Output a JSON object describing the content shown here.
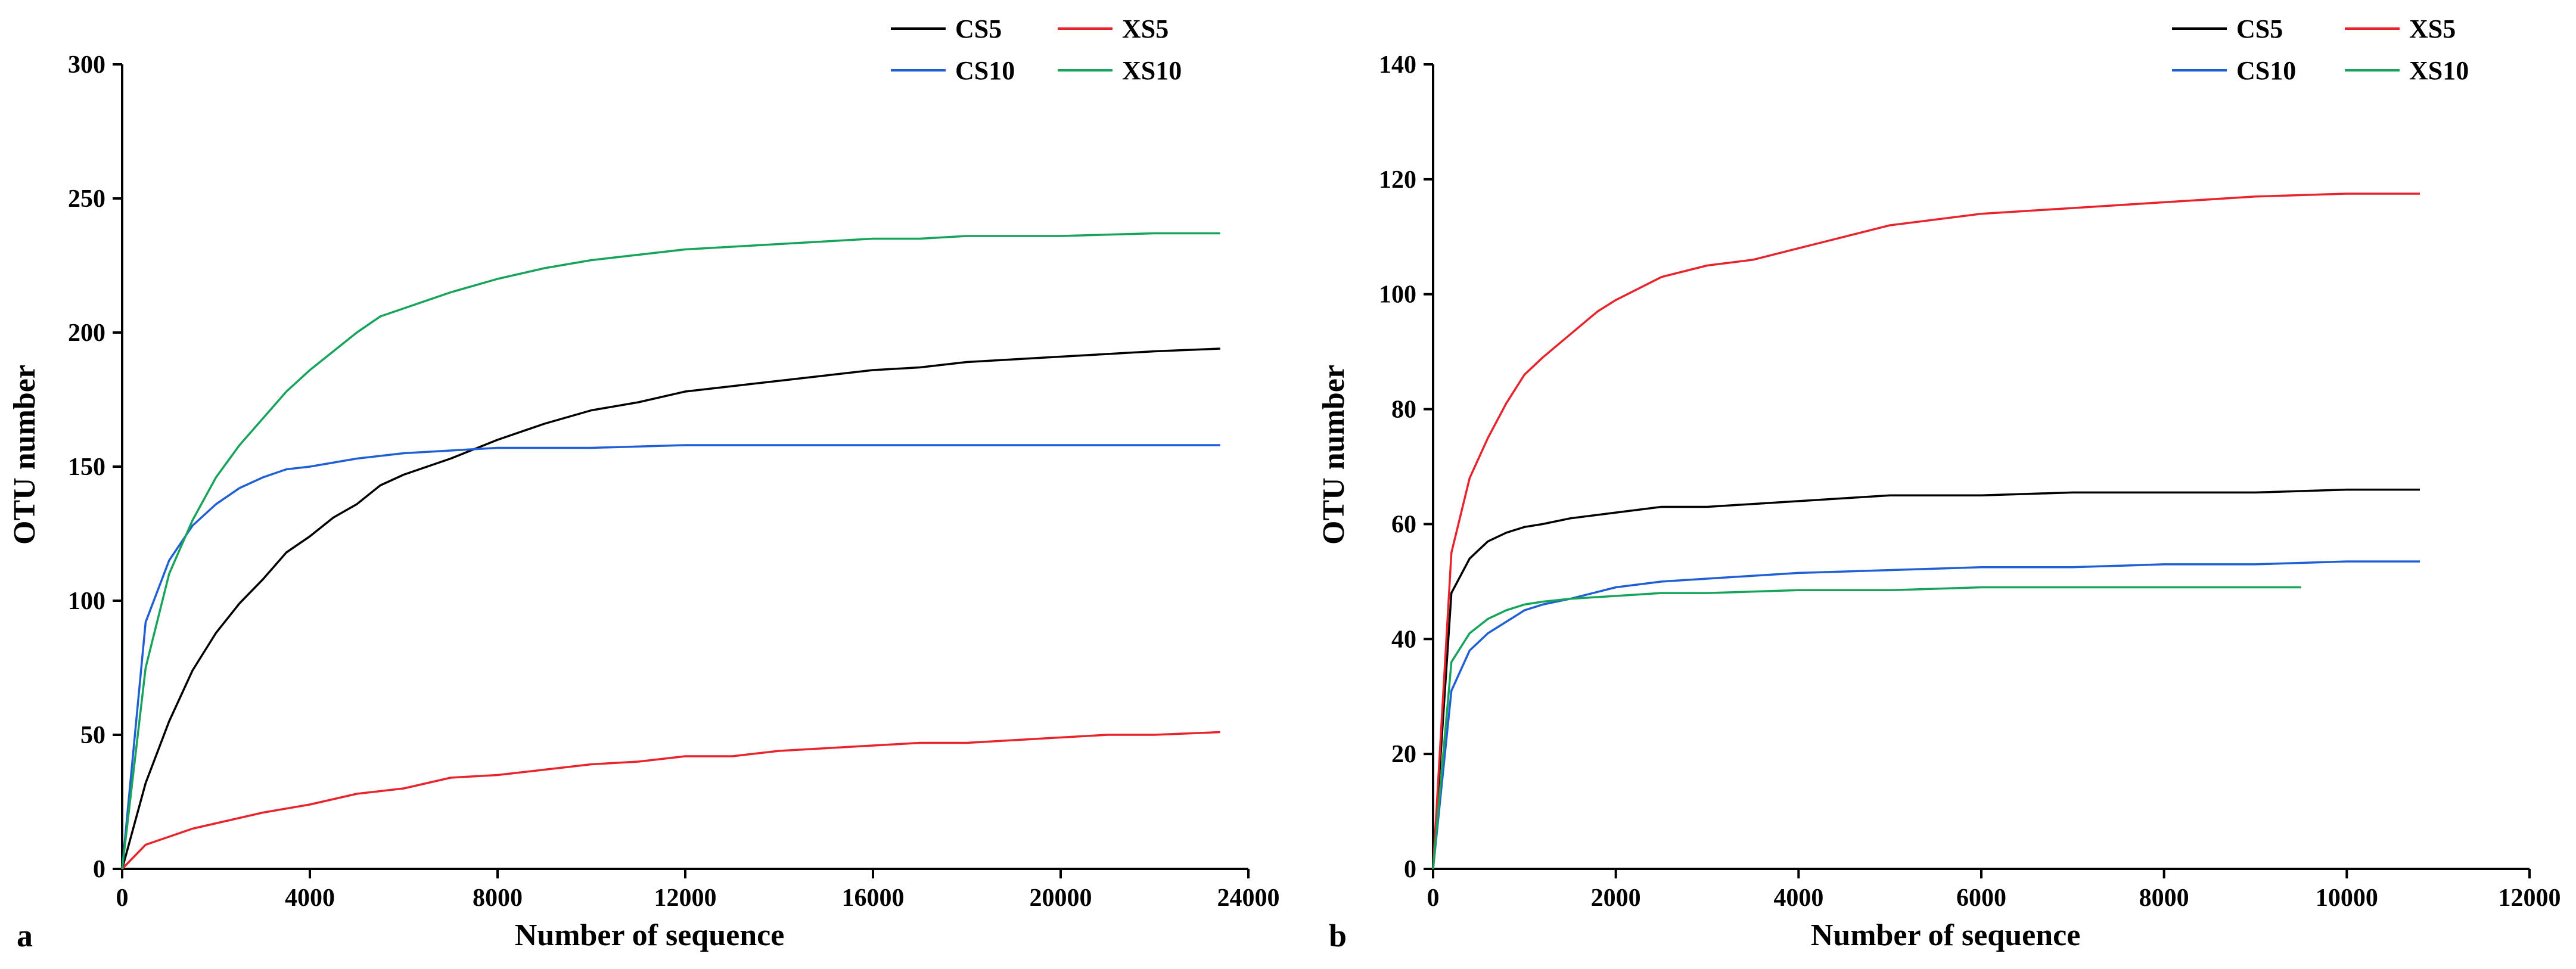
{
  "chart_data": [
    {
      "type": "line",
      "panel_label": "a",
      "xlabel": "Number of sequence",
      "ylabel": "OTU number",
      "xlim": [
        0,
        24000
      ],
      "ylim": [
        0,
        300
      ],
      "xticks": [
        "0",
        "4000",
        "8000",
        "12000",
        "16000",
        "20000",
        "24000"
      ],
      "yticks": [
        "0",
        "50",
        "100",
        "150",
        "200",
        "250",
        "300"
      ],
      "legend": [
        "CS5",
        "XS5",
        "CS10",
        "XS10"
      ],
      "legend_position": "top-right",
      "series": [
        {
          "name": "CS5",
          "color": "#000000",
          "x": [
            0,
            500,
            1000,
            1500,
            2000,
            2500,
            3000,
            3500,
            4000,
            4500,
            5000,
            5500,
            6000,
            7000,
            8000,
            9000,
            10000,
            11000,
            12000,
            13000,
            14000,
            15000,
            16000,
            17000,
            18000,
            19000,
            20000,
            21000,
            22000,
            23400
          ],
          "y": [
            0,
            32,
            55,
            74,
            88,
            99,
            108,
            118,
            124,
            131,
            136,
            143,
            147,
            153,
            160,
            166,
            171,
            174,
            178,
            180,
            182,
            184,
            186,
            187,
            189,
            190,
            191,
            192,
            193,
            194
          ]
        },
        {
          "name": "XS5",
          "color": "#e8232b",
          "x": [
            0,
            500,
            1000,
            1500,
            2000,
            3000,
            4000,
            5000,
            6000,
            7000,
            8000,
            9000,
            10000,
            11000,
            12000,
            13000,
            14000,
            15000,
            16000,
            17000,
            18000,
            19000,
            20000,
            21000,
            22000,
            23400
          ],
          "y": [
            0,
            9,
            12,
            15,
            17,
            21,
            24,
            28,
            30,
            34,
            35,
            37,
            39,
            40,
            42,
            42,
            44,
            45,
            46,
            47,
            47,
            48,
            49,
            50,
            50,
            51
          ]
        },
        {
          "name": "CS10",
          "color": "#1f5fd6",
          "x": [
            0,
            500,
            1000,
            1500,
            2000,
            2500,
            3000,
            3500,
            4000,
            5000,
            6000,
            7000,
            8000,
            10000,
            12000,
            14000,
            16000,
            18000,
            20000,
            22000,
            23400
          ],
          "y": [
            0,
            92,
            115,
            128,
            136,
            142,
            146,
            149,
            150,
            153,
            155,
            156,
            157,
            157,
            158,
            158,
            158,
            158,
            158,
            158,
            158
          ]
        },
        {
          "name": "XS10",
          "color": "#16a35a",
          "x": [
            0,
            500,
            1000,
            1500,
            2000,
            2500,
            3000,
            3500,
            4000,
            4500,
            5000,
            5500,
            6000,
            7000,
            8000,
            9000,
            10000,
            11000,
            12000,
            13000,
            14000,
            15000,
            16000,
            17000,
            18000,
            20000,
            22000,
            23400
          ],
          "y": [
            0,
            75,
            110,
            130,
            146,
            158,
            168,
            178,
            186,
            193,
            200,
            206,
            209,
            215,
            220,
            224,
            227,
            229,
            231,
            232,
            233,
            234,
            235,
            235,
            236,
            236,
            237,
            237
          ]
        }
      ]
    },
    {
      "type": "line",
      "panel_label": "b",
      "xlabel": "Number of sequence",
      "ylabel": "OTU number",
      "xlim": [
        0,
        12000
      ],
      "ylim": [
        0,
        140
      ],
      "xticks": [
        "0",
        "2000",
        "4000",
        "6000",
        "8000",
        "10000",
        "12000"
      ],
      "yticks": [
        "0",
        "20",
        "40",
        "60",
        "80",
        "100",
        "120",
        "140"
      ],
      "legend": [
        "CS5",
        "XS5",
        "CS10",
        "XS10"
      ],
      "legend_position": "top-right",
      "series": [
        {
          "name": "CS5",
          "color": "#000000",
          "x": [
            0,
            200,
            400,
            600,
            800,
            1000,
            1200,
            1500,
            2000,
            2500,
            3000,
            4000,
            5000,
            6000,
            7000,
            8000,
            9000,
            10000,
            10800
          ],
          "y": [
            0,
            48,
            54,
            57,
            58.5,
            59.5,
            60,
            61,
            62,
            63,
            63,
            64,
            65,
            65,
            65.5,
            65.5,
            65.5,
            66,
            66
          ]
        },
        {
          "name": "XS5",
          "color": "#e8232b",
          "x": [
            0,
            200,
            400,
            600,
            800,
            1000,
            1200,
            1500,
            1800,
            2000,
            2500,
            3000,
            3500,
            4000,
            4500,
            5000,
            6000,
            7000,
            8000,
            9000,
            10000,
            10800
          ],
          "y": [
            0,
            55,
            68,
            75,
            81,
            86,
            89,
            93,
            97,
            99,
            103,
            105,
            106,
            108,
            110,
            112,
            114,
            115,
            116,
            117,
            117.5,
            117.5
          ]
        },
        {
          "name": "CS10",
          "color": "#1f5fd6",
          "x": [
            0,
            200,
            400,
            600,
            800,
            1000,
            1200,
            1500,
            2000,
            2500,
            3000,
            4000,
            5000,
            6000,
            7000,
            8000,
            9000,
            10000,
            10800
          ],
          "y": [
            0,
            31,
            38,
            41,
            43,
            45,
            46,
            47,
            49,
            50,
            50.5,
            51.5,
            52,
            52.5,
            52.5,
            53,
            53,
            53.5,
            53.5
          ]
        },
        {
          "name": "XS10",
          "color": "#16a35a",
          "x": [
            0,
            200,
            400,
            600,
            800,
            1000,
            1200,
            1500,
            2000,
            2500,
            3000,
            4000,
            5000,
            6000,
            7000,
            8000,
            9000,
            9500
          ],
          "y": [
            0,
            36,
            41,
            43.5,
            45,
            46,
            46.5,
            47,
            47.5,
            48,
            48,
            48.5,
            48.5,
            49,
            49,
            49,
            49,
            49
          ]
        }
      ]
    }
  ]
}
